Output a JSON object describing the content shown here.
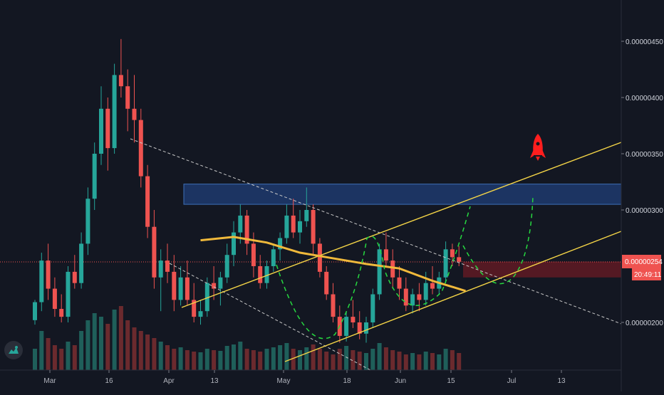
{
  "colors": {
    "background": "#131722",
    "bull": "#26a69a",
    "bear": "#ef5350",
    "grid": "#1e222d",
    "axis_text": "#d1d4dc",
    "channel": "#f5d547",
    "ma": "#f0b93b",
    "dotted": "#c8c8c8",
    "projection": "#26d840",
    "resistance_zone": "#2962ff",
    "support_zone": "#b2263a",
    "rocket": "#ff1e1e"
  },
  "chart_data": {
    "type": "candlestick",
    "instrument_price_scale": "BTC pair, 8 decimals",
    "y_ticks": [
      "0.00000450",
      "0.00000400",
      "0.00000350",
      "0.00000300",
      "0.00000200"
    ],
    "x_ticks": [
      "Mar",
      "16",
      "Apr",
      "13",
      "May",
      "18",
      "Jun",
      "15",
      "Jul",
      "13"
    ],
    "ylim": [
      1.55e-06,
      5.05e-06
    ],
    "grid": false,
    "last_price_label": "0.00000254",
    "countdown_label": "20:49:11",
    "candles_ohlc": [
      [
        2.02,
        2.2,
        1.98,
        2.18
      ],
      [
        2.18,
        2.62,
        2.1,
        2.55
      ],
      [
        2.55,
        2.7,
        2.2,
        2.3
      ],
      [
        2.3,
        2.4,
        2.05,
        2.12
      ],
      [
        2.12,
        2.25,
        2.0,
        2.05
      ],
      [
        2.05,
        2.5,
        2.0,
        2.45
      ],
      [
        2.45,
        2.6,
        2.3,
        2.35
      ],
      [
        2.35,
        2.8,
        2.3,
        2.7
      ],
      [
        2.7,
        3.2,
        2.6,
        3.1
      ],
      [
        3.1,
        3.6,
        3.0,
        3.5
      ],
      [
        3.5,
        4.1,
        3.4,
        3.9
      ],
      [
        3.9,
        4.0,
        3.35,
        3.55
      ],
      [
        3.55,
        4.3,
        3.5,
        4.2
      ],
      [
        4.2,
        4.52,
        4.0,
        4.1
      ],
      [
        4.1,
        4.25,
        3.7,
        3.9
      ],
      [
        3.9,
        4.2,
        3.6,
        3.8
      ],
      [
        3.8,
        3.9,
        3.2,
        3.3
      ],
      [
        3.3,
        3.4,
        2.75,
        2.85
      ],
      [
        2.85,
        3.0,
        2.3,
        2.4
      ],
      [
        2.4,
        2.65,
        2.1,
        2.55
      ],
      [
        2.55,
        2.7,
        2.35,
        2.45
      ],
      [
        2.45,
        2.6,
        2.1,
        2.2
      ],
      [
        2.2,
        2.5,
        2.15,
        2.4
      ],
      [
        2.4,
        2.55,
        2.15,
        2.2
      ],
      [
        2.2,
        2.35,
        2.0,
        2.05
      ],
      [
        2.05,
        2.2,
        1.98,
        2.1
      ],
      [
        2.1,
        2.4,
        2.05,
        2.35
      ],
      [
        2.35,
        2.5,
        2.2,
        2.3
      ],
      [
        2.3,
        2.45,
        2.15,
        2.4
      ],
      [
        2.4,
        2.7,
        2.35,
        2.6
      ],
      [
        2.6,
        2.9,
        2.5,
        2.8
      ],
      [
        2.8,
        3.05,
        2.7,
        2.95
      ],
      [
        2.95,
        3.0,
        2.6,
        2.7
      ],
      [
        2.7,
        2.8,
        2.4,
        2.5
      ],
      [
        2.5,
        2.6,
        2.3,
        2.35
      ],
      [
        2.35,
        2.55,
        2.3,
        2.5
      ],
      [
        2.5,
        2.7,
        2.45,
        2.65
      ],
      [
        2.65,
        2.8,
        2.55,
        2.75
      ],
      [
        2.75,
        3.05,
        2.7,
        2.95
      ],
      [
        2.95,
        3.1,
        2.75,
        2.8
      ],
      [
        2.8,
        3.0,
        2.7,
        2.9
      ],
      [
        2.9,
        3.2,
        2.85,
        3.0
      ],
      [
        3.0,
        3.05,
        2.6,
        2.7
      ],
      [
        2.7,
        2.75,
        2.4,
        2.45
      ],
      [
        2.45,
        2.5,
        2.2,
        2.25
      ],
      [
        2.25,
        2.35,
        2.0,
        2.05
      ],
      [
        2.05,
        2.15,
        1.82,
        1.88
      ],
      [
        1.88,
        2.1,
        1.83,
        2.05
      ],
      [
        2.05,
        2.2,
        1.95,
        2.0
      ],
      [
        2.0,
        2.1,
        1.85,
        1.9
      ],
      [
        1.9,
        2.05,
        1.82,
        2.0
      ],
      [
        2.0,
        2.3,
        1.95,
        2.25
      ],
      [
        2.25,
        2.7,
        2.2,
        2.65
      ],
      [
        2.65,
        2.8,
        2.5,
        2.55
      ],
      [
        2.55,
        2.65,
        2.3,
        2.4
      ],
      [
        2.4,
        2.5,
        2.2,
        2.3
      ],
      [
        2.3,
        2.4,
        2.1,
        2.15
      ],
      [
        2.15,
        2.3,
        2.08,
        2.25
      ],
      [
        2.25,
        2.35,
        2.1,
        2.2
      ],
      [
        2.2,
        2.45,
        2.15,
        2.35
      ],
      [
        2.35,
        2.5,
        2.25,
        2.3
      ],
      [
        2.3,
        2.45,
        2.25,
        2.4
      ],
      [
        2.4,
        2.72,
        2.35,
        2.65
      ],
      [
        2.65,
        2.7,
        2.5,
        2.58
      ],
      [
        2.58,
        2.68,
        2.5,
        2.54
      ]
    ],
    "volumes": [
      30,
      55,
      45,
      35,
      30,
      40,
      35,
      55,
      70,
      80,
      75,
      65,
      85,
      90,
      70,
      60,
      55,
      50,
      45,
      40,
      35,
      30,
      32,
      28,
      26,
      25,
      30,
      28,
      27,
      34,
      36,
      40,
      30,
      28,
      26,
      30,
      32,
      35,
      38,
      30,
      28,
      32,
      36,
      30,
      26,
      22,
      30,
      34,
      28,
      26,
      24,
      30,
      38,
      32,
      28,
      26,
      22,
      24,
      22,
      26,
      24,
      22,
      30,
      28,
      24
    ],
    "annotations": {
      "resistance_zone": [
        3.05e-06,
        3.23e-06
      ],
      "support_zone": [
        2.4e-06,
        2.54e-06
      ],
      "moving_average": [
        [
          25,
          2.73
        ],
        [
          30,
          2.76
        ],
        [
          35,
          2.71
        ],
        [
          40,
          2.62
        ],
        [
          45,
          2.57
        ],
        [
          50,
          2.52
        ],
        [
          55,
          2.48
        ],
        [
          60,
          2.37
        ],
        [
          65,
          2.28
        ]
      ]
    }
  }
}
